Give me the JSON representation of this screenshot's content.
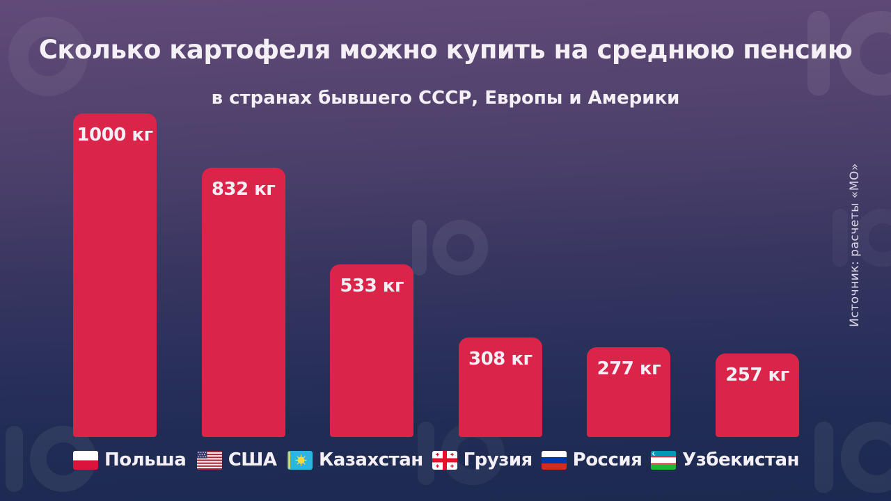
{
  "meta": {
    "source": "Источник: расчеты «МО»"
  },
  "colors": {
    "bar": "#da2449",
    "text": "#f4f0f5",
    "background_top": "#614a79",
    "background_bottom": "#1c2950"
  },
  "chart_data": {
    "type": "bar",
    "title": "Сколько картофеля можно купить на среднюю пенсию",
    "subtitle": "в странах бывшего СССР, Европы и Америки",
    "unit": "кг",
    "categories": [
      "Польша",
      "США",
      "Казахстан",
      "Грузия",
      "Россия",
      "Узбекистан"
    ],
    "values": [
      1000,
      832,
      533,
      308,
      277,
      257
    ],
    "labels": [
      "1000 кг",
      "832 кг",
      "533 кг",
      "308 кг",
      "277 кг",
      "257 кг"
    ],
    "flags": [
      "poland-flag-icon",
      "usa-flag-icon",
      "kazakhstan-flag-icon",
      "georgia-flag-icon",
      "russia-flag-icon",
      "uzbekistan-flag-icon"
    ],
    "ylim": [
      0,
      1000
    ],
    "grid": false,
    "legend": "none",
    "bar_color": "#da2449",
    "value_labels_position": "inside-top",
    "orientation": "vertical"
  }
}
